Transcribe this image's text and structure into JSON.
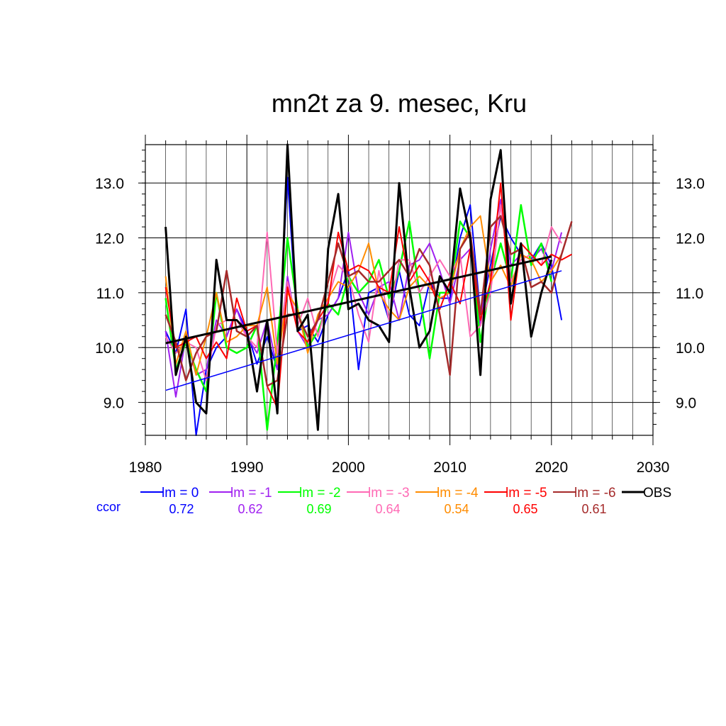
{
  "chart_data": {
    "type": "line",
    "title": "mn2t za 9. mesec, Kru",
    "xlabel": "",
    "ylabel": "",
    "xlim": [
      1980,
      2030
    ],
    "ylim": [
      8.4,
      13.7
    ],
    "x_ticks": [
      "1980",
      "1990",
      "2000",
      "2010",
      "2020",
      "2030"
    ],
    "y_ticks": [
      "9.0",
      "10.0",
      "11.0",
      "12.0",
      "13.0"
    ],
    "y_tick_values": [
      9.0,
      10.0,
      11.0,
      12.0,
      13.0
    ],
    "x_tick_values": [
      1980,
      1990,
      2000,
      2010,
      2020,
      2030
    ],
    "grid": true,
    "legend_position": "bottom",
    "ccor_label": "ccor",
    "series": [
      {
        "name": "lm = 0",
        "color": "#0000ff",
        "ccor": "0.72",
        "start_year": 1982,
        "width": 2,
        "values": [
          10.3,
          9.9,
          10.7,
          8.4,
          9.6,
          10.0,
          10.2,
          10.7,
          10.3,
          9.7,
          10.2,
          9.6,
          13.1,
          10.3,
          10.4,
          10.1,
          10.6,
          10.9,
          11.4,
          9.6,
          11.0,
          11.1,
          10.5,
          11.4,
          10.6,
          10.4,
          11.2,
          10.9,
          10.9,
          12.0,
          12.6,
          10.6,
          11.5,
          12.4,
          12.0,
          11.7,
          11.6,
          11.9,
          11.5,
          10.5
        ],
        "trend": [
          9.22,
          11.4
        ]
      },
      {
        "name": "lm = -1",
        "color": "#a020f0",
        "ccor": "0.62",
        "start_year": 1982,
        "width": 2,
        "values": [
          10.3,
          9.1,
          10.2,
          9.5,
          9.6,
          10.5,
          10.2,
          10.7,
          10.2,
          9.9,
          10.5,
          9.6,
          11.3,
          10.3,
          10.0,
          10.5,
          10.6,
          10.9,
          12.1,
          11.0,
          10.6,
          11.1,
          11.2,
          10.5,
          11.5,
          11.6,
          11.9,
          11.4,
          10.8,
          11.6,
          11.8,
          10.4,
          11.8,
          12.7,
          11.5,
          11.7,
          11.6,
          11.8,
          11.4,
          12.1
        ]
      },
      {
        "name": "lm = -2",
        "color": "#00ff00",
        "ccor": "0.69",
        "start_year": 1982,
        "width": 2.5,
        "values": [
          10.9,
          9.6,
          10.1,
          9.6,
          9.2,
          11.0,
          10.0,
          9.9,
          10.0,
          10.4,
          8.5,
          10.1,
          12.0,
          10.7,
          10.0,
          10.3,
          10.8,
          10.6,
          11.3,
          11.0,
          11.2,
          11.6,
          10.9,
          11.4,
          12.3,
          11.0,
          9.8,
          11.0,
          11.0,
          12.3,
          12.0,
          10.1,
          11.2,
          11.9,
          11.2,
          12.6,
          11.5,
          11.9,
          11.2
        ]
      },
      {
        "name": "lm = -3",
        "color": "#ff69b4",
        "ccor": "0.64",
        "start_year": 1982,
        "width": 2,
        "values": [
          10.2,
          9.9,
          10.1,
          10.0,
          9.4,
          10.4,
          10.5,
          10.5,
          10.2,
          10.0,
          12.1,
          9.9,
          11.2,
          10.4,
          10.9,
          10.2,
          10.9,
          11.5,
          11.3,
          10.6,
          10.1,
          11.4,
          10.5,
          11.6,
          11.6,
          11.0,
          11.3,
          11.6,
          11.3,
          11.7,
          10.2,
          10.4,
          11.0,
          12.6,
          11.2,
          11.6,
          11.7,
          11.5,
          12.2,
          11.9
        ]
      },
      {
        "name": "lm = -4",
        "color": "#ff8c00",
        "ccor": "0.54",
        "start_year": 1982,
        "width": 2,
        "values": [
          11.3,
          9.7,
          10.3,
          9.5,
          10.2,
          11.0,
          10.1,
          10.2,
          10.4,
          10.4,
          11.1,
          9.7,
          11.0,
          10.7,
          9.9,
          10.6,
          10.9,
          11.2,
          11.1,
          11.4,
          11.9,
          11.0,
          10.7,
          10.5,
          11.1,
          11.3,
          11.1,
          10.9,
          11.0,
          11.8,
          12.2,
          12.4,
          11.2,
          11.5,
          11.1,
          11.7,
          11.6,
          11.2,
          11.4,
          11.7
        ]
      },
      {
        "name": "lm = -5",
        "color": "#ff0000",
        "ccor": "0.65",
        "start_year": 1982,
        "width": 2,
        "values": [
          11.1,
          10.0,
          10.1,
          10.2,
          9.8,
          10.1,
          9.8,
          10.9,
          10.3,
          10.4,
          9.3,
          8.9,
          11.1,
          10.3,
          10.1,
          10.5,
          10.8,
          12.1,
          11.4,
          11.5,
          11.4,
          11.1,
          11.0,
          12.2,
          11.2,
          11.5,
          11.2,
          10.7,
          11.2,
          10.8,
          11.8,
          10.5,
          11.2,
          13.0,
          10.5,
          11.9,
          11.7,
          11.5,
          11.7,
          11.6,
          11.7
        ]
      },
      {
        "name": "lm = -6",
        "color": "#a52a2a",
        "ccor": "0.61",
        "start_year": 1982,
        "width": 2.5,
        "values": [
          10.6,
          10.1,
          9.4,
          9.9,
          10.2,
          10.3,
          11.4,
          10.3,
          10.2,
          10.4,
          9.3,
          9.4,
          10.6,
          10.6,
          10.2,
          10.5,
          11.2,
          11.9,
          11.3,
          11.4,
          11.2,
          11.2,
          11.4,
          11.6,
          11.3,
          11.8,
          11.5,
          10.6,
          9.5,
          11.8,
          12.1,
          10.6,
          12.2,
          12.4,
          11.7,
          11.8,
          11.1,
          11.2,
          11.0,
          11.7,
          12.3
        ]
      },
      {
        "name": "OBS",
        "color": "#000000",
        "start_year": 1982,
        "width": 3,
        "values": [
          12.2,
          9.5,
          10.2,
          9.0,
          8.8,
          11.6,
          10.5,
          10.5,
          10.3,
          9.2,
          10.5,
          8.8,
          13.7,
          10.3,
          10.6,
          8.5,
          11.8,
          12.8,
          10.7,
          10.8,
          10.5,
          10.4,
          10.1,
          13.0,
          11.1,
          10.0,
          10.3,
          11.3,
          11.0,
          12.9,
          12.0,
          9.5,
          12.7,
          13.6,
          10.8,
          11.9,
          10.2,
          11.0,
          11.6
        ],
        "trend_end_year": 2020,
        "trend": [
          10.08,
          11.66
        ]
      }
    ]
  }
}
